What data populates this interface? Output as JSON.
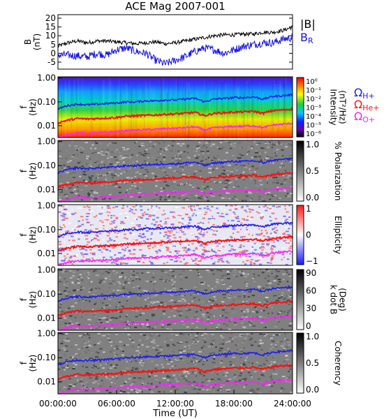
{
  "chart_data": {
    "type": "line",
    "title": "ACE Mag 2007-001",
    "xlabel": "Time (UT)",
    "x_ticks": [
      "00:00:00",
      "06:00:00",
      "12:00:00",
      "18:00:00",
      "24:00:00"
    ],
    "x_range_hours": [
      0,
      24
    ],
    "colors": {
      "b_total": "#000000",
      "b_r": "#1414e6",
      "omega_h": "#1a1aff",
      "omega_he": "#ff1010",
      "omega_o": "#ff20ff"
    },
    "panels": [
      {
        "id": "field",
        "ylabel_lines": [
          "B",
          "(nT)"
        ],
        "ylim": [
          -9,
          22
        ],
        "y_ticks": [
          20,
          15,
          10,
          5,
          0,
          -5
        ],
        "legend": [
          "|B|",
          "B_R"
        ],
        "series": [
          {
            "name": "|B|",
            "x": [
              0,
              1,
              2,
              3,
              4,
              5,
              6,
              7,
              8,
              9,
              10,
              11,
              12,
              13,
              14,
              15,
              16,
              17,
              18,
              19,
              20,
              21,
              22,
              23,
              24
            ],
            "values": [
              4,
              6,
              7,
              6,
              7,
              7,
              6.5,
              6,
              5.5,
              6,
              6.5,
              5.5,
              6,
              7,
              8,
              9,
              10,
              10.5,
              10.5,
              11,
              11,
              12,
              12,
              13,
              15
            ]
          },
          {
            "name": "B_R",
            "x": [
              0,
              1,
              2,
              3,
              4,
              5,
              6,
              7,
              8,
              9,
              10,
              11,
              12,
              13,
              14,
              15,
              16,
              17,
              18,
              19,
              20,
              21,
              22,
              23,
              24
            ],
            "values": [
              -1,
              -1,
              -1.5,
              -2,
              0,
              -1,
              2,
              3,
              1,
              0,
              -4,
              -6,
              -4,
              -2,
              1,
              3,
              2,
              0,
              2,
              4,
              5,
              6,
              6,
              8,
              9
            ]
          }
        ]
      },
      {
        "id": "intensity",
        "ylabel_lines": [
          "f",
          "(Hz)"
        ],
        "flim_log": [
          -2.5,
          0.05
        ],
        "y_ticks": [
          "1.00",
          "0.10",
          "0.01"
        ],
        "colorbar": {
          "label_lines": [
            "Intensity",
            "(nT²/Hz)"
          ],
          "ticks": [
            "10⁰",
            "10⁻¹",
            "10⁻²",
            "10⁻³",
            "10⁻⁴",
            "10⁻⁵",
            "10⁻⁶"
          ],
          "scheme": "spectral"
        },
        "legend": [
          {
            "base": "Ω",
            "sub": "H+"
          },
          {
            "base": "Ω",
            "sub": "He+"
          },
          {
            "base": "Ω",
            "sub": "O+"
          }
        ]
      },
      {
        "id": "polarization",
        "ylabel_lines": [
          "f",
          "(Hz)"
        ],
        "flim_log": [
          -2.5,
          0.05
        ],
        "y_ticks": [
          "1.00",
          "0.10",
          "0.01"
        ],
        "colorbar": {
          "label_lines": [
            "% Polarization"
          ],
          "ticks": [
            "1.0",
            "0.5",
            "0.0"
          ],
          "scheme": "gray"
        }
      },
      {
        "id": "ellipticity",
        "ylabel_lines": [
          "f",
          "(Hz)"
        ],
        "flim_log": [
          -2.5,
          0.05
        ],
        "y_ticks": [
          "1.00",
          "0.10",
          "0.01"
        ],
        "colorbar": {
          "label_lines": [
            "Ellipticity"
          ],
          "ticks": [
            "1",
            "0",
            "−1"
          ],
          "scheme": "diverging"
        }
      },
      {
        "id": "kdotb",
        "ylabel_lines": [
          "f",
          "(Hz)"
        ],
        "flim_log": [
          -2.5,
          0.05
        ],
        "y_ticks": [
          "1.00",
          "0.10",
          "0.01"
        ],
        "colorbar": {
          "label_lines": [
            "k dot B",
            "(Deg)"
          ],
          "ticks": [
            "90",
            "60",
            "30",
            "0"
          ],
          "scheme": "gray"
        }
      },
      {
        "id": "coherency",
        "ylabel_lines": [
          "f",
          "(Hz)"
        ],
        "flim_log": [
          -2.5,
          0.05
        ],
        "y_ticks": [
          "1.00",
          "0.10",
          "0.01"
        ],
        "colorbar": {
          "label_lines": [
            "Coherency"
          ],
          "ticks": [
            "1.0",
            "0.5",
            "0.0"
          ],
          "scheme": "gray"
        }
      }
    ],
    "gyrofrequency_lines": {
      "x": [
        0,
        1,
        2,
        3,
        4,
        5,
        6,
        7,
        8,
        9,
        10,
        11,
        12,
        13,
        14,
        15,
        16,
        17,
        18,
        19,
        20,
        21,
        22,
        23,
        24
      ],
      "H+": [
        0.05,
        0.07,
        0.08,
        0.075,
        0.08,
        0.085,
        0.09,
        0.1,
        0.1,
        0.11,
        0.11,
        0.12,
        0.12,
        0.13,
        0.14,
        0.1,
        0.13,
        0.14,
        0.15,
        0.15,
        0.16,
        0.13,
        0.17,
        0.18,
        0.2
      ],
      "He+": [
        0.013,
        0.017,
        0.02,
        0.019,
        0.02,
        0.021,
        0.022,
        0.025,
        0.026,
        0.027,
        0.028,
        0.03,
        0.031,
        0.033,
        0.036,
        0.026,
        0.033,
        0.035,
        0.037,
        0.038,
        0.04,
        0.033,
        0.043,
        0.046,
        0.05
      ],
      "O+": [
        0.003,
        0.0042,
        0.005,
        0.0047,
        0.005,
        0.0053,
        0.0056,
        0.0062,
        0.0065,
        0.0068,
        0.007,
        0.0075,
        0.0078,
        0.0082,
        0.009,
        0.0065,
        0.0082,
        0.0087,
        0.0093,
        0.0095,
        0.01,
        0.0082,
        0.0107,
        0.0115,
        0.0125
      ]
    }
  }
}
